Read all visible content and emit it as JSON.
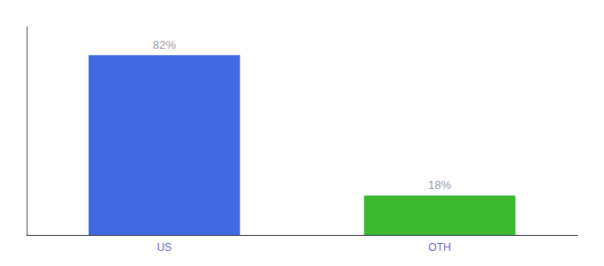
{
  "chart_data": {
    "type": "bar",
    "categories": [
      "US",
      "OTH"
    ],
    "values": [
      82,
      18
    ],
    "value_labels": [
      "82%",
      "18%"
    ],
    "colors": [
      "#4169e1",
      "#3cb832"
    ],
    "data_labels": true,
    "ylim": [
      0,
      95
    ],
    "grid": false,
    "tick_labels": "x"
  }
}
